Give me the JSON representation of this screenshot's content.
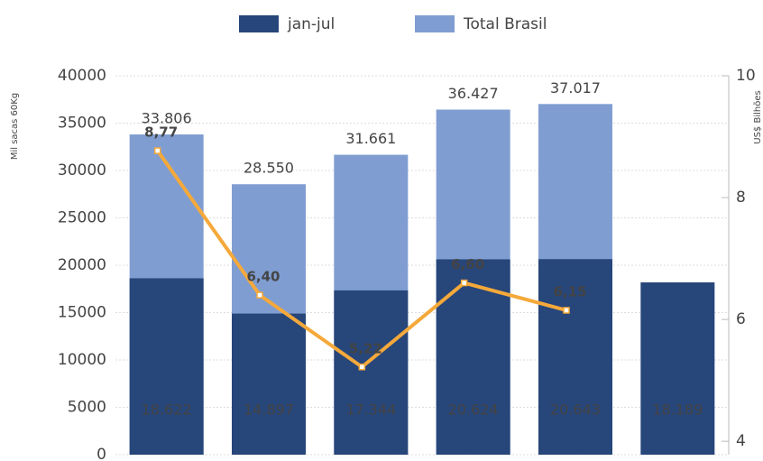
{
  "chart_data": {
    "type": "bar",
    "categories": [
      null,
      null,
      null,
      null,
      null,
      null
    ],
    "series": [
      {
        "name": "Total Brasil",
        "color": "#7f9dd1",
        "values": [
          33806,
          28550,
          31661,
          36427,
          37017,
          null
        ],
        "value_labels": [
          "33.806",
          "28.550",
          "31.661",
          "36.427",
          "37.017",
          null
        ]
      },
      {
        "name": "jan-jul",
        "color": "#27467a",
        "values": [
          18622,
          14897,
          17344,
          20624,
          20643,
          18189
        ],
        "value_labels": [
          "18.622",
          "14.897",
          "17.344",
          "20.624",
          "20.643",
          "18.189"
        ]
      },
      {
        "type": "line",
        "axis": "y2",
        "color": "#f5a93a",
        "values": [
          8.77,
          6.4,
          5.22,
          6.6,
          6.15,
          null
        ],
        "value_labels": [
          "8,77",
          "6,40",
          "5,22",
          "6,60",
          "6,15",
          null
        ]
      }
    ],
    "legend_order": [
      "jan-jul",
      "Total Brasil"
    ],
    "ylabel": "Mil sacas 60Kg",
    "y2label": "US$ Bilhões",
    "ylim": [
      0,
      40000
    ],
    "yticks": [
      0,
      5000,
      10000,
      15000,
      20000,
      25000,
      30000,
      35000,
      40000
    ],
    "y2lim": [
      3.78,
      10
    ],
    "y2ticks": [
      4,
      6,
      8,
      10
    ],
    "grid": true,
    "legend": "top"
  }
}
